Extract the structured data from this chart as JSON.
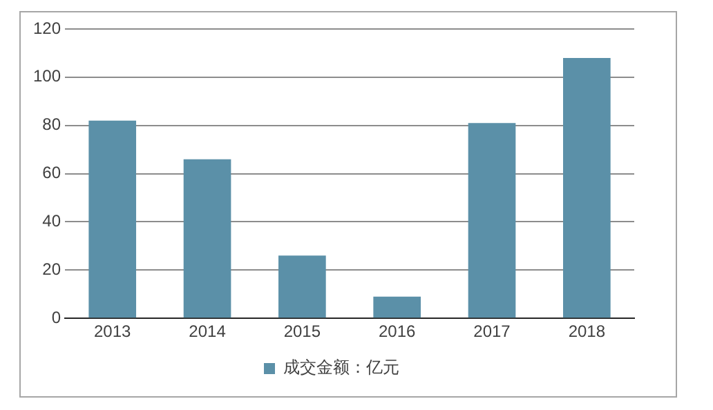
{
  "chart_data": {
    "type": "bar",
    "categories": [
      "2013",
      "2014",
      "2015",
      "2016",
      "2017",
      "2018"
    ],
    "series": [
      {
        "name": "成交金额：亿元",
        "color": "#5b90a8",
        "values": [
          82,
          66,
          26,
          9,
          81,
          108
        ]
      }
    ],
    "ylim": [
      0,
      120
    ],
    "yticks": [
      0,
      20,
      40,
      60,
      80,
      100,
      120
    ],
    "grid": "y",
    "legend": "bottom"
  }
}
